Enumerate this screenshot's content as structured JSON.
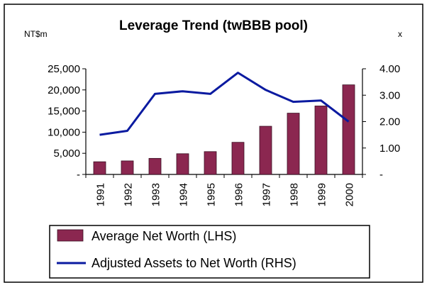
{
  "chart_data": {
    "type": "bar",
    "title": "Leverage Trend (twBBB pool)",
    "left_unit": "NT$m",
    "right_unit": "x",
    "categories": [
      "1991",
      "1992",
      "1993",
      "1994",
      "1995",
      "1996",
      "1997",
      "1998",
      "1999",
      "2000"
    ],
    "series": [
      {
        "name": "Average Net Worth (LHS)",
        "type": "bar",
        "axis": "left",
        "color": "#8b2750",
        "values": [
          3000,
          3200,
          3800,
          4900,
          5400,
          7600,
          11400,
          14500,
          16200,
          21200
        ]
      },
      {
        "name": "Adjusted Assets to Net Worth (RHS)",
        "type": "line",
        "axis": "right",
        "color": "#0a1aa0",
        "values": [
          1.5,
          1.65,
          3.05,
          3.15,
          3.05,
          3.85,
          3.2,
          2.75,
          2.8,
          2.0
        ]
      }
    ],
    "left_axis": {
      "ylim": [
        0,
        25000
      ],
      "ticks": [
        0,
        5000,
        10000,
        15000,
        20000,
        25000
      ],
      "tick_labels": [
        "-",
        "5,000",
        "10,000",
        "15,000",
        "20,000",
        "25,000"
      ]
    },
    "right_axis": {
      "ylim": [
        0,
        4.0
      ],
      "ticks": [
        0,
        1.0,
        2.0,
        3.0,
        4.0
      ],
      "tick_labels": [
        "-",
        "1.00",
        "2.00",
        "3.00",
        "4.00"
      ]
    },
    "grid": false,
    "legend_position": "bottom"
  }
}
